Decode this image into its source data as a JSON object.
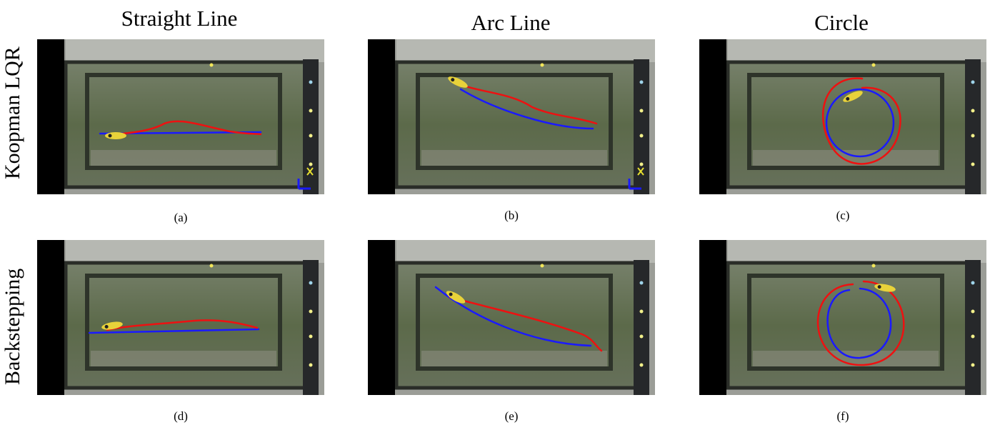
{
  "columns": [
    "Straight Line",
    "Arc Line",
    "Circle"
  ],
  "rows": [
    "Koopman LQR",
    "Backstepping"
  ],
  "captions": [
    "(a)",
    "(b)",
    "(c)",
    "(d)",
    "(e)",
    "(f)"
  ],
  "colors": {
    "reference": "#1a1aff",
    "actual": "#ee1111",
    "fish": "#e8d23a",
    "water": "#5e6b4c",
    "frame": "#9b9d97"
  }
}
